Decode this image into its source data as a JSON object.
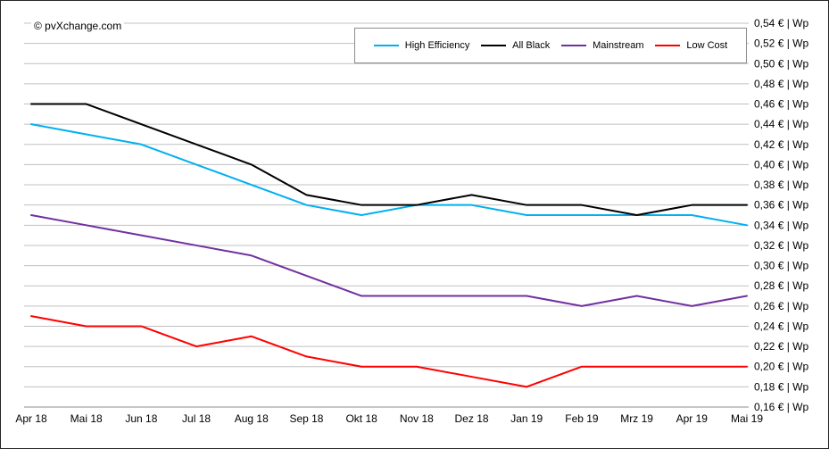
{
  "watermark": "© pvXchange.com",
  "chart_data": {
    "type": "line",
    "title": "",
    "xlabel": "",
    "ylabel": "",
    "categories": [
      "Apr 18",
      "Mai 18",
      "Jun 18",
      "Jul 18",
      "Aug 18",
      "Sep 18",
      "Okt 18",
      "Nov 18",
      "Dez 18",
      "Jan 19",
      "Feb 19",
      "Mrz 19",
      "Apr 19",
      "Mai 19"
    ],
    "series": [
      {
        "name": "High Efficiency",
        "color": "#00B0F0",
        "width": 2,
        "values": [
          0.44,
          0.43,
          0.42,
          0.4,
          0.38,
          0.36,
          0.35,
          0.36,
          0.36,
          0.35,
          0.35,
          0.35,
          0.35,
          0.34
        ]
      },
      {
        "name": "All Black",
        "color": "#000000",
        "width": 2,
        "values": [
          0.46,
          0.46,
          0.44,
          0.42,
          0.4,
          0.37,
          0.36,
          0.36,
          0.37,
          0.36,
          0.36,
          0.35,
          0.36,
          0.36
        ]
      },
      {
        "name": "Mainstream",
        "color": "#7030A0",
        "width": 2,
        "values": [
          0.35,
          0.34,
          0.33,
          0.32,
          0.31,
          0.29,
          0.27,
          0.27,
          0.27,
          0.27,
          0.26,
          0.27,
          0.26,
          0.27
        ]
      },
      {
        "name": "Low Cost",
        "color": "#FF0000",
        "width": 2,
        "values": [
          0.25,
          0.24,
          0.24,
          0.22,
          0.23,
          0.21,
          0.2,
          0.2,
          0.19,
          0.18,
          0.2,
          0.2,
          0.2,
          0.2
        ]
      }
    ],
    "ylim": [
      0.16,
      0.54
    ],
    "ytick_step": 0.02,
    "ytick_suffix": " € | Wp",
    "grid": true,
    "grid_color": "#C0C0C0",
    "axis_line_color": "#8c8c8c",
    "legend_position": "top"
  }
}
